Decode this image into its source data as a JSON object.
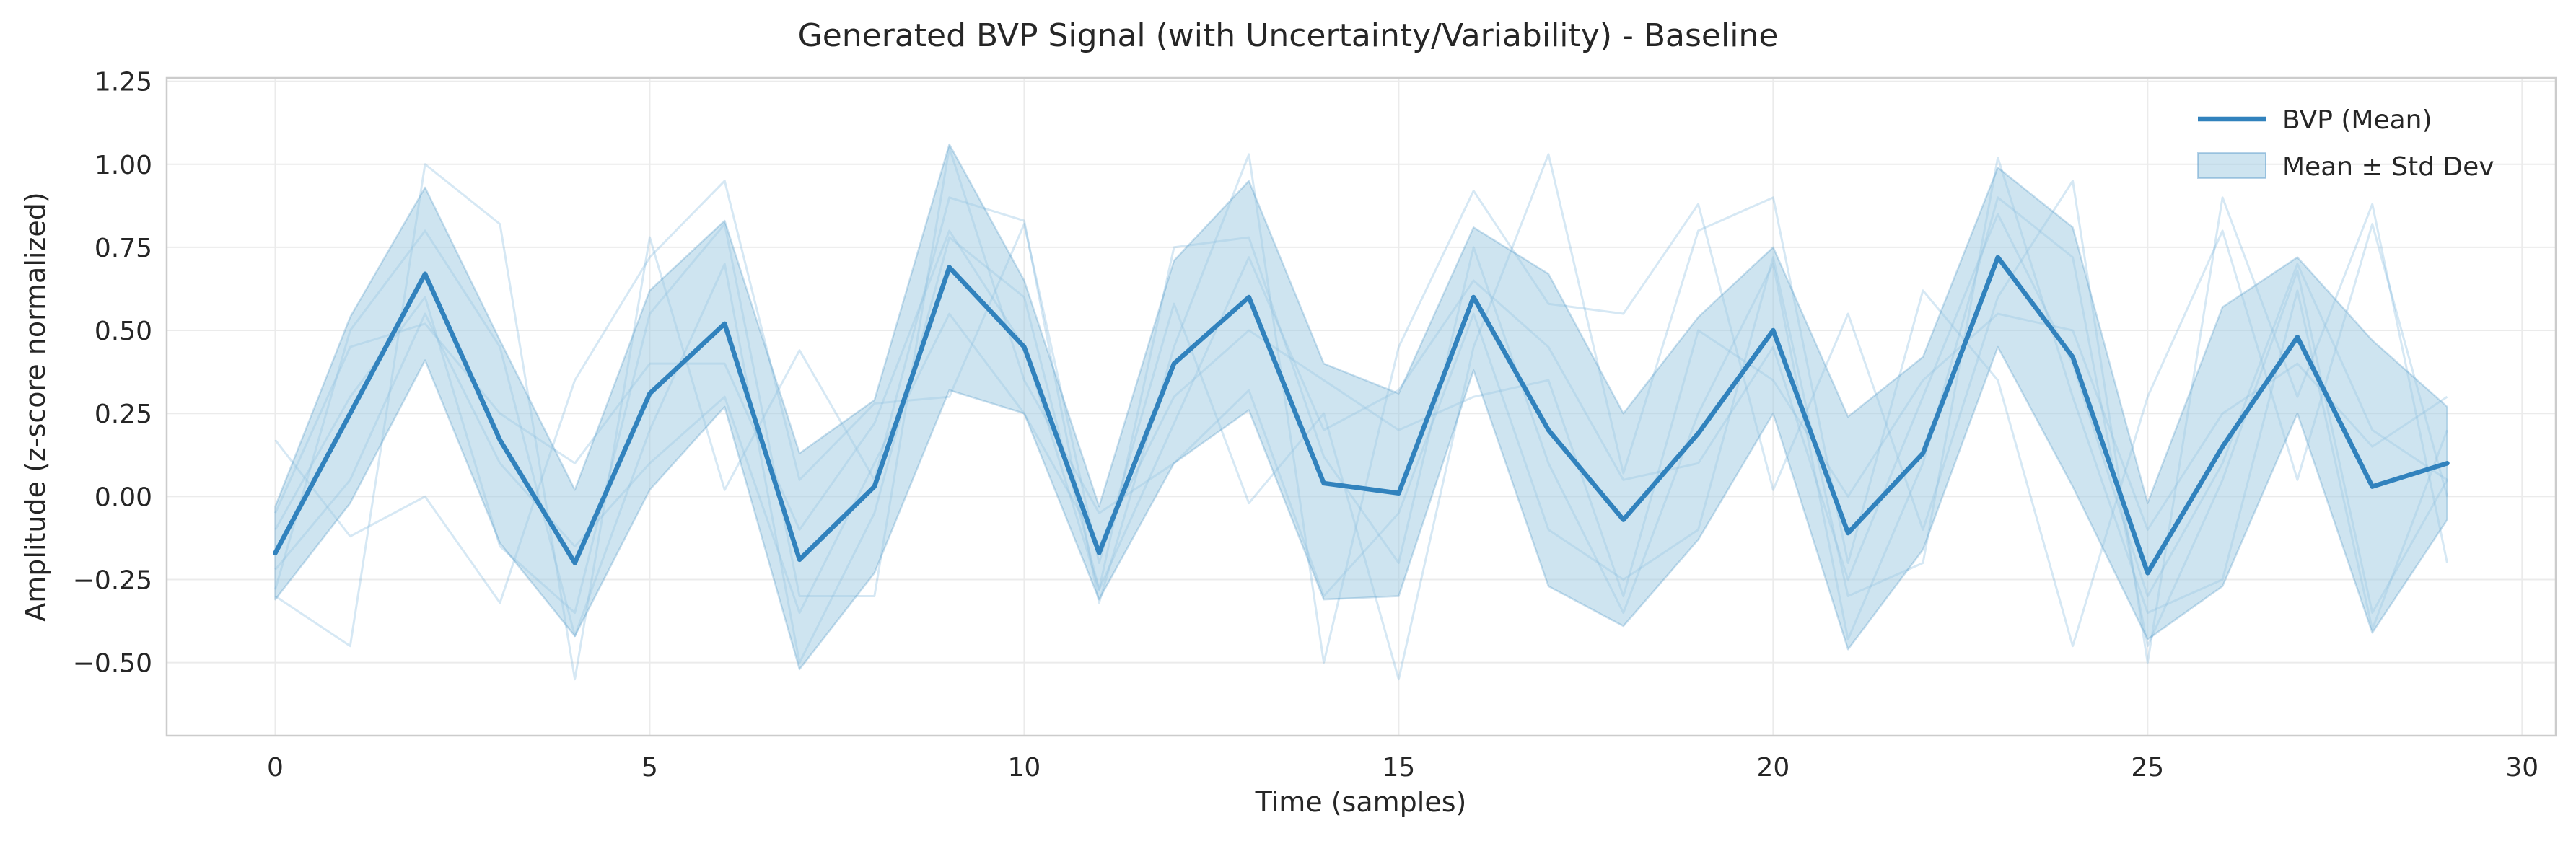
{
  "chart_data": {
    "type": "line",
    "title": "Generated BVP Signal (with Uncertainty/Variability) - Baseline",
    "xlabel": "Time (samples)",
    "ylabel": "Amplitude (z-score normalized)",
    "xlim": [
      -1.45,
      30.45
    ],
    "ylim": [
      -0.72,
      1.26
    ],
    "xticks": [
      0,
      5,
      10,
      15,
      20,
      25,
      30
    ],
    "xtick_labels": [
      "0",
      "5",
      "10",
      "15",
      "20",
      "25",
      "30"
    ],
    "yticks": [
      -0.5,
      -0.25,
      0.0,
      0.25,
      0.5,
      0.75,
      1.0,
      1.25
    ],
    "ytick_labels": [
      "−0.50",
      "−0.25",
      "0.00",
      "0.25",
      "0.50",
      "0.75",
      "1.00",
      "1.25"
    ],
    "grid": true,
    "legend_position": "top-right",
    "colors": {
      "mean_line": "#3182bd",
      "band_fill": "#9ecae1",
      "band_edge": "#3182bd",
      "sample_lines": "#6baed6",
      "grid": "#ebebeb",
      "frame": "#cccccc",
      "text": "#262626"
    },
    "x": [
      0,
      1,
      2,
      3,
      4,
      5,
      6,
      7,
      8,
      9,
      10,
      11,
      12,
      13,
      14,
      15,
      16,
      17,
      18,
      19,
      20,
      21,
      22,
      23,
      24,
      25,
      26,
      27,
      28,
      29
    ],
    "series": [
      {
        "name": "BVP (Mean)",
        "kind": "line",
        "values": [
          -0.17,
          0.25,
          0.67,
          0.17,
          -0.2,
          0.31,
          0.52,
          -0.19,
          0.03,
          0.69,
          0.45,
          -0.17,
          0.4,
          0.6,
          0.04,
          0.01,
          0.6,
          0.2,
          -0.07,
          0.19,
          0.5,
          -0.11,
          0.13,
          0.72,
          0.42,
          -0.23,
          0.15,
          0.48,
          0.03,
          0.1
        ]
      },
      {
        "name": "Mean ± Std Dev",
        "kind": "band",
        "lower": [
          -0.31,
          -0.02,
          0.41,
          -0.14,
          -0.42,
          0.02,
          0.27,
          -0.52,
          -0.23,
          0.32,
          0.25,
          -0.31,
          0.1,
          0.26,
          -0.31,
          -0.3,
          0.38,
          -0.27,
          -0.39,
          -0.13,
          0.25,
          -0.46,
          -0.16,
          0.45,
          0.03,
          -0.43,
          -0.27,
          0.25,
          -0.41,
          -0.07
        ],
        "upper": [
          -0.03,
          0.54,
          0.93,
          0.47,
          0.02,
          0.62,
          0.83,
          0.13,
          0.29,
          1.06,
          0.65,
          -0.03,
          0.71,
          0.95,
          0.4,
          0.31,
          0.81,
          0.67,
          0.25,
          0.54,
          0.75,
          0.24,
          0.42,
          0.99,
          0.81,
          -0.02,
          0.57,
          0.72,
          0.47,
          0.27
        ]
      }
    ],
    "sample_traces": [
      [
        -0.28,
        0.5,
        0.8,
        0.45,
        -0.42,
        0.2,
        0.7,
        -0.5,
        -0.05,
        0.78,
        0.6,
        -0.28,
        0.75,
        0.78,
        0.12,
        -0.2,
        0.75,
        0.1,
        -0.35,
        0.25,
        0.7,
        -0.43,
        0.1,
        0.9,
        0.72,
        -0.45,
        0.05,
        0.68,
        -0.35,
        0.05
      ],
      [
        -0.1,
        0.3,
        0.6,
        -0.15,
        -0.35,
        0.55,
        0.82,
        -0.3,
        -0.3,
        1.05,
        0.35,
        -0.05,
        0.1,
        0.32,
        -0.3,
        -0.05,
        0.55,
        -0.1,
        -0.25,
        -0.1,
        0.72,
        -0.3,
        -0.2,
        1.02,
        0.3,
        -0.35,
        -0.25,
        0.62,
        -0.4,
        0.2
      ],
      [
        -0.3,
        -0.45,
        1.0,
        0.82,
        -0.55,
        0.78,
        0.02,
        0.44,
        0.05,
        0.9,
        0.83,
        -0.32,
        0.45,
        1.03,
        -0.5,
        0.45,
        0.92,
        0.58,
        0.55,
        0.88,
        0.02,
        0.55,
        -0.1,
        0.6,
        0.95,
        -0.5,
        0.9,
        0.3,
        0.88,
        -0.2
      ],
      [
        0.17,
        -0.12,
        0.0,
        -0.32,
        0.35,
        0.72,
        0.95,
        0.05,
        0.28,
        0.3,
        0.82,
        -0.2,
        0.58,
        -0.02,
        0.25,
        -0.55,
        0.45,
        1.03,
        0.07,
        0.8,
        0.9,
        -0.2,
        0.62,
        0.35,
        -0.45,
        0.3,
        0.8,
        0.05,
        0.82,
        0.0
      ],
      [
        -0.22,
        0.05,
        0.55,
        0.1,
        -0.15,
        0.1,
        0.3,
        -0.35,
        0.1,
        0.55,
        0.25,
        -0.15,
        0.3,
        0.5,
        0.35,
        0.2,
        0.3,
        0.35,
        -0.3,
        0.5,
        0.35,
        0.0,
        0.35,
        0.55,
        0.5,
        -0.1,
        0.25,
        0.4,
        0.15,
        0.3
      ],
      [
        -0.05,
        0.45,
        0.52,
        0.25,
        0.1,
        0.4,
        0.4,
        -0.1,
        0.22,
        0.8,
        0.45,
        -0.28,
        0.22,
        0.72,
        0.2,
        0.32,
        0.65,
        0.45,
        0.05,
        0.1,
        0.45,
        -0.25,
        0.3,
        0.85,
        0.4,
        -0.3,
        0.1,
        0.7,
        0.2,
        0.05
      ]
    ]
  },
  "legend": {
    "items": [
      {
        "label": "BVP (Mean)"
      },
      {
        "label": "Mean ± Std Dev"
      }
    ]
  }
}
